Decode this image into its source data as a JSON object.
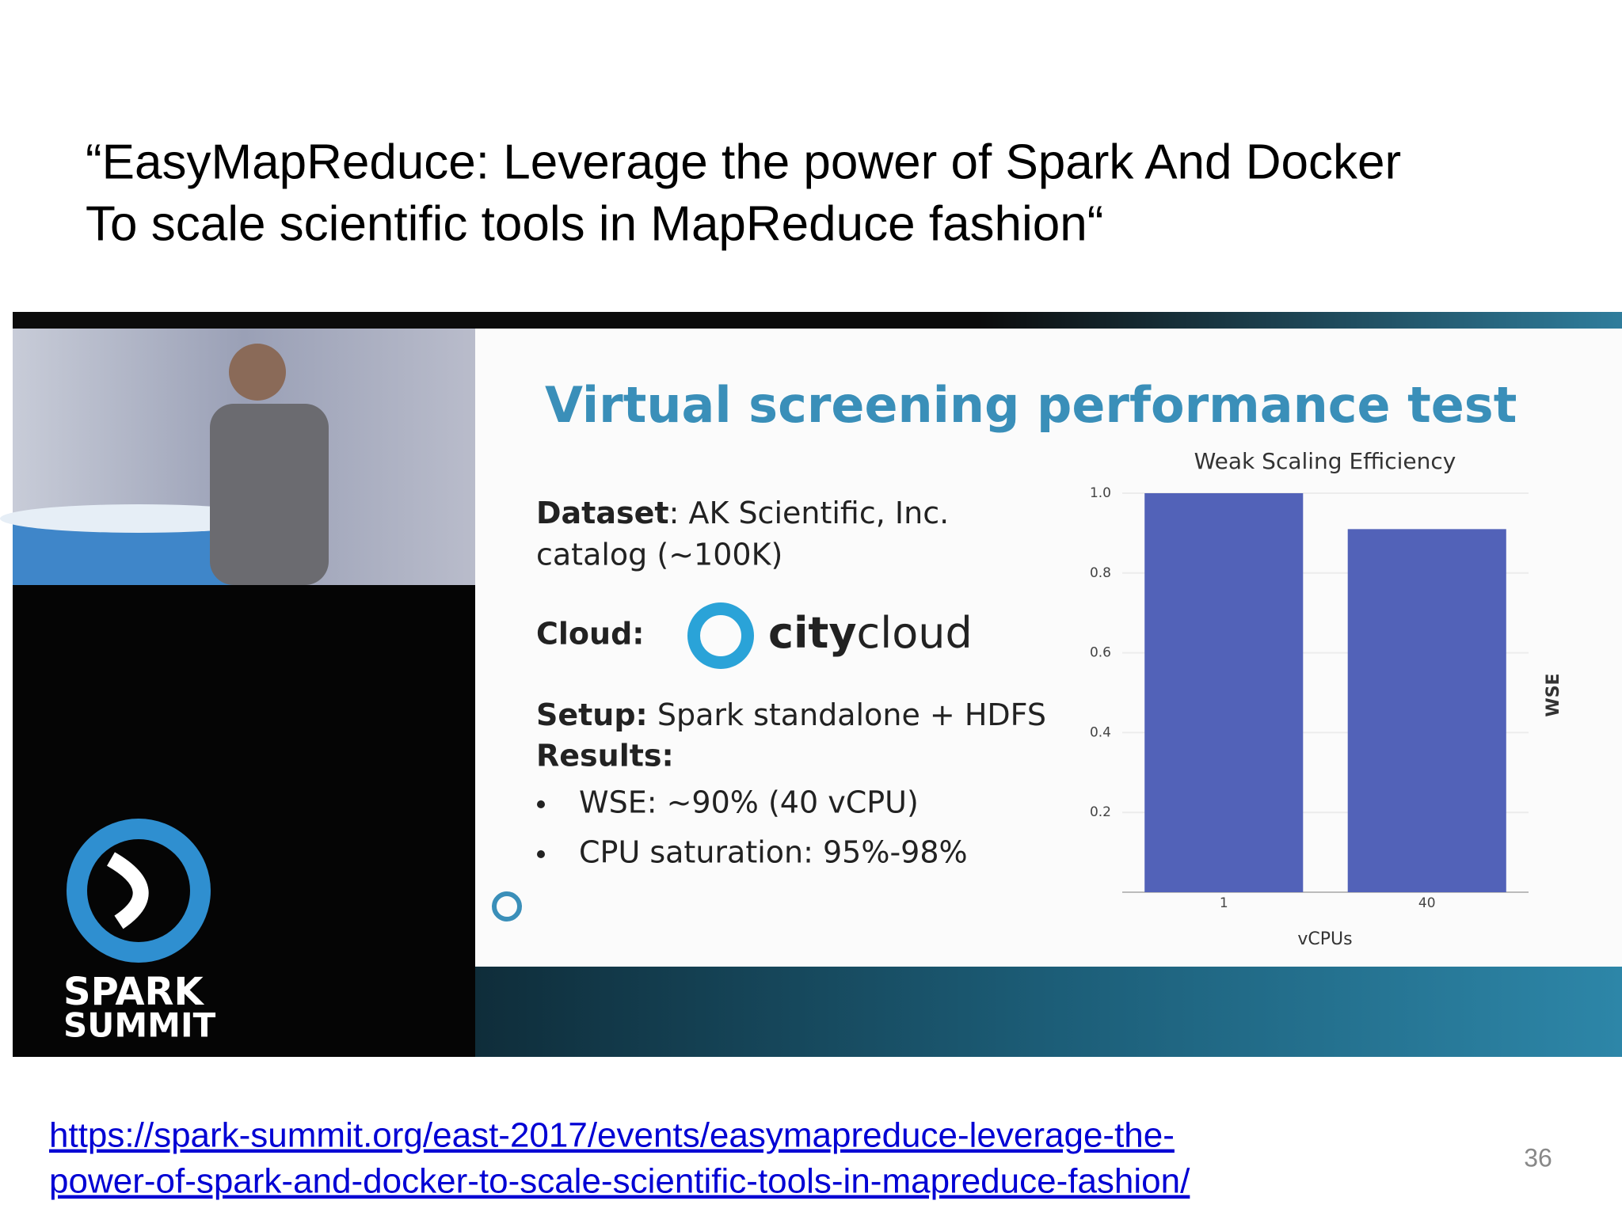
{
  "slide": {
    "title_lines": [
      "“EasyMapReduce: Leverage the power of Spark And Docker",
      "To scale scientific tools in MapReduce fashion“"
    ],
    "video": {
      "brand": [
        "SPARK",
        "SUMMIT"
      ],
      "slide_title": "Virtual screening performance test",
      "dataset_label": "Dataset",
      "dataset_text": ": AK Scientific, Inc.",
      "dataset_text2": "catalog (~100K)",
      "cloud_label": "Cloud:",
      "cloud_logo": [
        "city",
        "cloud"
      ],
      "setup_label": "Setup:",
      "setup_text": " Spark standalone + HDFS",
      "results_label": "Results:",
      "results": [
        "WSE: ~90% (40 vCPU)",
        "CPU saturation: 95%-98%"
      ]
    },
    "link_lines": [
      "https://spark-summit.org/east-2017/events/easymapreduce-leverage-the-",
      "power-of-spark-and-docker-to-scale-scientific-tools-in-mapreduce-fashion/"
    ],
    "page_number": "36"
  },
  "chart_data": {
    "type": "bar",
    "title": "Weak Scaling Efficiency",
    "x_label": "vCPUs",
    "y_label": "WSE",
    "categories": [
      "1",
      "40"
    ],
    "values": [
      1.0,
      0.91
    ],
    "color": "#5262b8",
    "ylim": [
      0,
      1.0
    ],
    "yticks": [
      0.2,
      0.4,
      0.6,
      0.8,
      {
        "value": 1.0,
        "label": "1.0"
      }
    ],
    "grid": true
  }
}
